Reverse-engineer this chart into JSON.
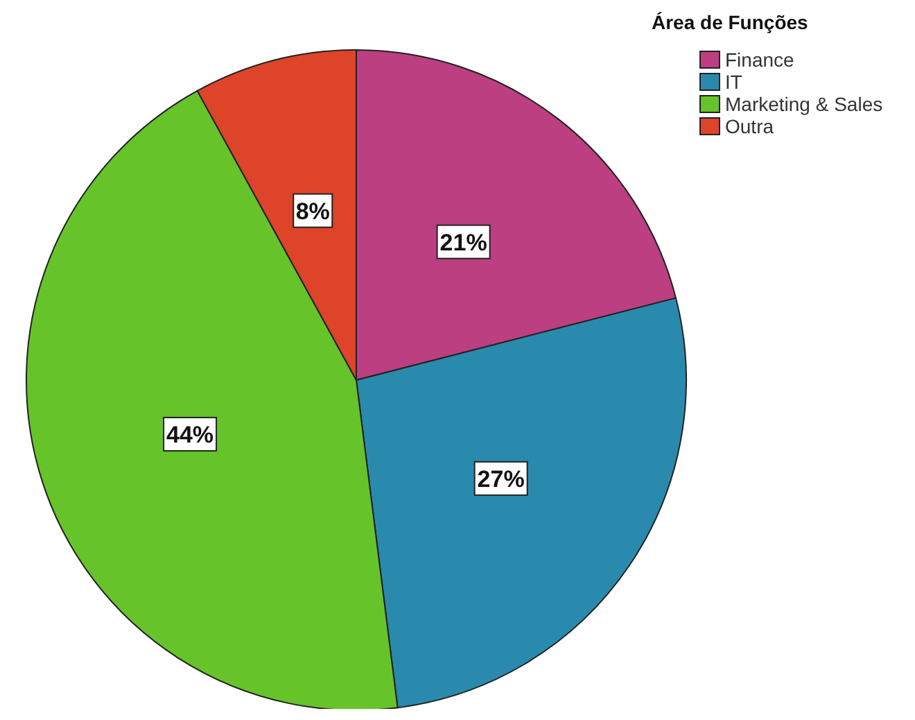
{
  "chart_data": {
    "type": "pie",
    "legend_title": "Área de Funções",
    "categories": [
      "Finance",
      "IT",
      "Marketing & Sales",
      "Outra"
    ],
    "values": [
      21,
      27,
      44,
      8
    ],
    "colors": [
      "#bc3f82",
      "#2a8aad",
      "#66c42a",
      "#dd4429"
    ],
    "value_labels": [
      "21%",
      "27%",
      "44%",
      "8%"
    ],
    "legend": "top right"
  }
}
